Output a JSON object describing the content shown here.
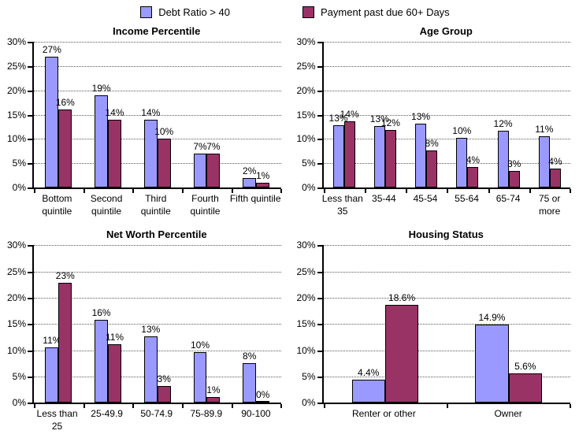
{
  "legend": {
    "items": [
      {
        "label": "Debt Ratio > 40",
        "color": "#9999ff"
      },
      {
        "label": "Payment past due 60+ Days",
        "color": "#993366"
      }
    ]
  },
  "y_axis": {
    "tick_values": [
      0,
      5,
      10,
      15,
      20,
      25,
      30
    ],
    "tick_labels": [
      "0%",
      "5%",
      "10%",
      "15%",
      "20%",
      "25%",
      "30%"
    ],
    "max": 30
  },
  "chart_data": [
    {
      "type": "bar",
      "title": "Income Percentile",
      "ylim": [
        0,
        30
      ],
      "grid": true,
      "legend_position": "top-shared",
      "categories": [
        [
          "Bottom",
          "quintile"
        ],
        [
          "Second",
          "quintile"
        ],
        [
          "Third",
          "quintile"
        ],
        [
          "Fourth",
          "quintile"
        ],
        [
          "Fifth quintile"
        ]
      ],
      "series": [
        {
          "name": "Debt Ratio > 40",
          "color": "#9999ff",
          "values": [
            27,
            19,
            14,
            7,
            2
          ],
          "labels": [
            "27%",
            "19%",
            "14%",
            "7%",
            "2%"
          ]
        },
        {
          "name": "Payment past due 60+ Days",
          "color": "#993366",
          "values": [
            16,
            14,
            10,
            7,
            1
          ],
          "labels": [
            "16%",
            "14%",
            "10%",
            "7%",
            "1%"
          ]
        }
      ]
    },
    {
      "type": "bar",
      "title": "Age Group",
      "ylim": [
        0,
        30
      ],
      "grid": true,
      "legend_position": "top-shared",
      "categories": [
        [
          "Less than",
          "35"
        ],
        [
          "35-44"
        ],
        [
          "45-54"
        ],
        [
          "55-64"
        ],
        [
          "65-74"
        ],
        [
          "75 or",
          "more"
        ]
      ],
      "series": [
        {
          "name": "Debt Ratio > 40",
          "color": "#9999ff",
          "values": [
            12.8,
            12.6,
            13.1,
            10.2,
            11.6,
            10.6
          ],
          "labels": [
            "13%",
            "13%",
            "13%",
            "10%",
            "12%",
            "11%"
          ]
        },
        {
          "name": "Payment past due 60+ Days",
          "color": "#993366",
          "values": [
            13.7,
            11.8,
            7.6,
            4.2,
            3.4,
            3.9
          ],
          "labels": [
            "14%",
            "12%",
            "8%",
            "4%",
            "3%",
            "4%"
          ]
        }
      ]
    },
    {
      "type": "bar",
      "title": "Net Worth Percentile",
      "ylim": [
        0,
        30
      ],
      "grid": true,
      "legend_position": "top-shared",
      "categories": [
        [
          "Less than",
          "25"
        ],
        [
          "25-49.9"
        ],
        [
          "50-74.9"
        ],
        [
          "75-89.9"
        ],
        [
          "90-100"
        ]
      ],
      "series": [
        {
          "name": "Debt Ratio > 40",
          "color": "#9999ff",
          "values": [
            10.6,
            15.8,
            12.7,
            9.6,
            7.6
          ],
          "labels": [
            "11%",
            "16%",
            "13%",
            "10%",
            "8%"
          ]
        },
        {
          "name": "Payment past due 60+ Days",
          "color": "#993366",
          "values": [
            22.9,
            11.1,
            3.2,
            1.1,
            0.15
          ],
          "labels": [
            "23%",
            "11%",
            "3%",
            "1%",
            "0%"
          ]
        }
      ]
    },
    {
      "type": "bar",
      "title": "Housing Status",
      "ylim": [
        0,
        30
      ],
      "grid": true,
      "legend_position": "top-shared",
      "categories": [
        [
          "Renter or other"
        ],
        [
          "Owner"
        ]
      ],
      "series": [
        {
          "name": "Debt Ratio > 40",
          "color": "#9999ff",
          "values": [
            4.4,
            14.9
          ],
          "labels": [
            "4.4%",
            "14.9%"
          ]
        },
        {
          "name": "Payment past due 60+ Days",
          "color": "#993366",
          "values": [
            18.6,
            5.6
          ],
          "labels": [
            "18.6%",
            "5.6%"
          ]
        }
      ]
    }
  ]
}
